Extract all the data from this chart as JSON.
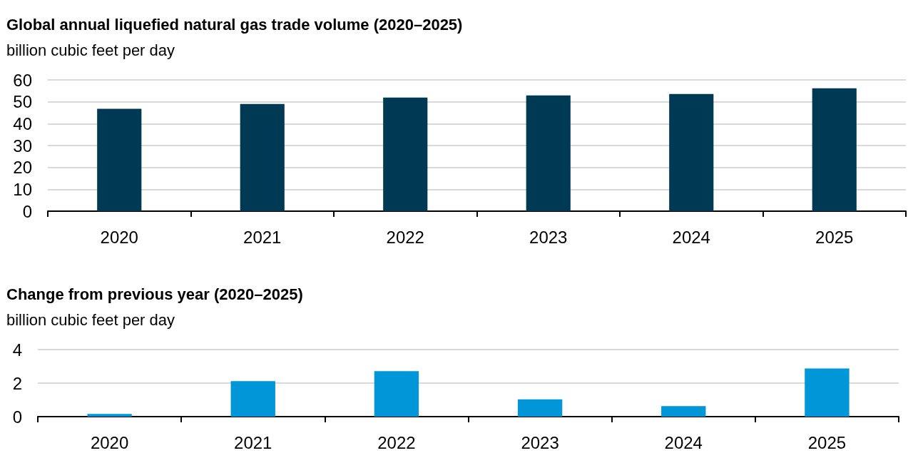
{
  "chart_data": [
    {
      "type": "bar",
      "title": "Global annual liquefied natural gas trade volume (2020–2025)",
      "subtitle": "billion cubic feet per day",
      "categories": [
        "2020",
        "2021",
        "2022",
        "2023",
        "2024",
        "2025"
      ],
      "values": [
        46.8,
        49.0,
        51.9,
        52.9,
        53.6,
        56.2
      ],
      "color": "#003953",
      "ylim": [
        0,
        60
      ],
      "yticks": [
        0,
        10,
        20,
        30,
        40,
        50,
        60
      ],
      "grid": "y"
    },
    {
      "type": "bar",
      "title": "Change from previous year (2020–2025)",
      "subtitle": "billion cubic feet per day",
      "categories": [
        "2020",
        "2021",
        "2022",
        "2023",
        "2024",
        "2025"
      ],
      "values": [
        0.16,
        2.12,
        2.71,
        1.03,
        0.63,
        2.87
      ],
      "color": "#0096d7",
      "ylim": [
        0,
        4
      ],
      "yticks": [
        0,
        2,
        4
      ],
      "grid": "y"
    }
  ]
}
